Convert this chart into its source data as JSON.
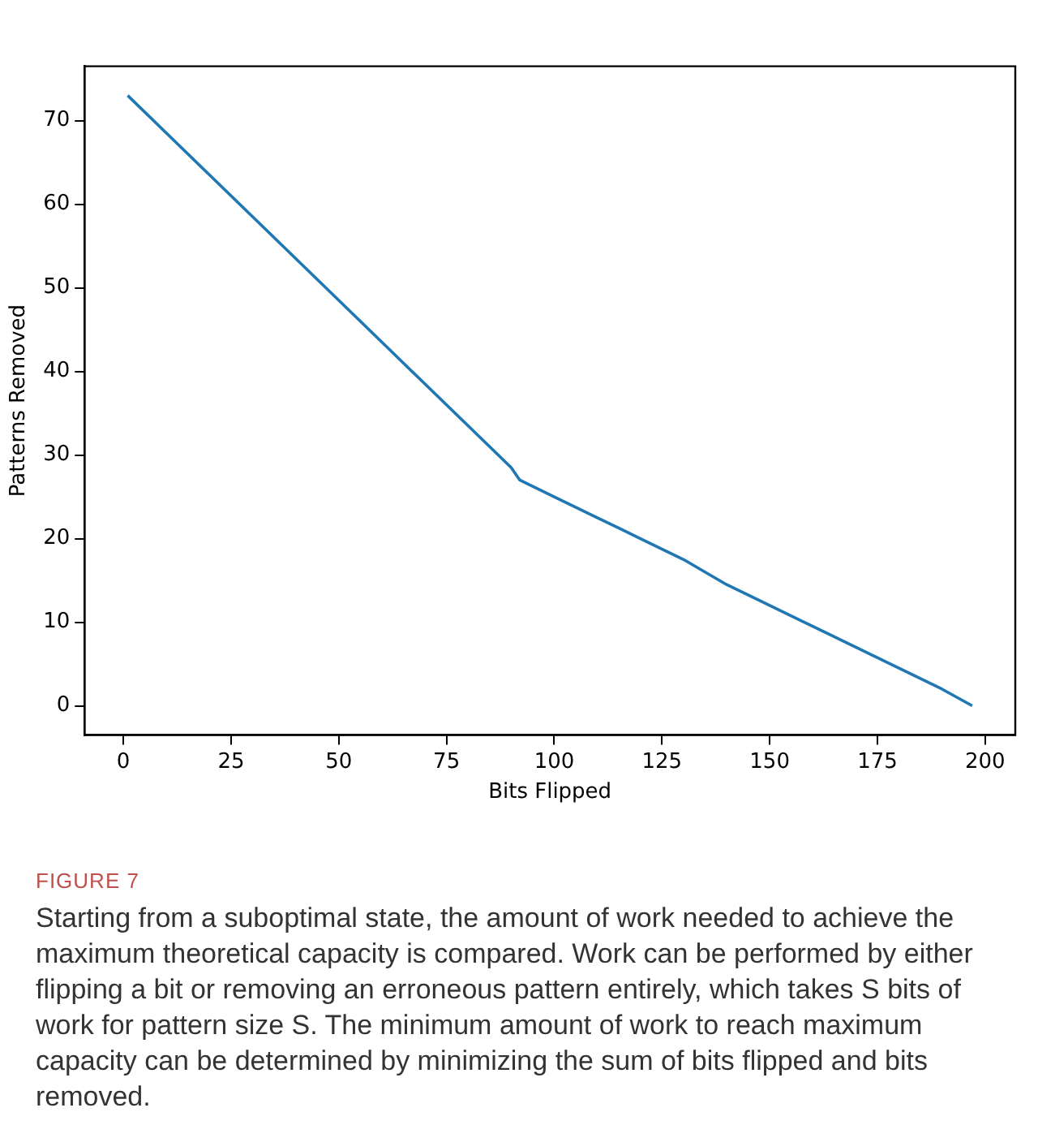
{
  "chart_data": {
    "type": "line",
    "xlabel": "Bits Flipped",
    "ylabel": "Patterns Removed",
    "x": [
      1,
      10,
      20,
      30,
      40,
      50,
      60,
      70,
      80,
      90,
      92,
      100,
      110,
      120,
      130,
      140,
      150,
      160,
      170,
      180,
      190,
      197
    ],
    "series": [
      {
        "color": "#1f77b4",
        "values": [
          73,
          68.5,
          63.5,
          58.5,
          53.5,
          48.5,
          43.5,
          38.5,
          33.5,
          28.5,
          27,
          25,
          22.5,
          20,
          17.5,
          14.5,
          12,
          9.5,
          7,
          4.5,
          2,
          0
        ]
      }
    ],
    "xlim": [
      -9,
      207
    ],
    "xticks": [
      0,
      25,
      50,
      75,
      100,
      125,
      150,
      175,
      200
    ],
    "ylim": [
      -3.5,
      76.5
    ],
    "yticks": [
      0,
      10,
      20,
      30,
      40,
      50,
      60,
      70
    ],
    "grid": false,
    "legend": false,
    "marker": "none",
    "line_style": "solid",
    "annotations": [
      "FIGURE 7",
      "Starting from a suboptimal state, the amount of work needed to achieve the maximum theoretical capacity is compared. Work can be performed by either flipping a bit or removing an erroneous pattern entirely, which takes S bits of work for pattern size S. The minimum amount of work to reach maximum capacity can be determined by minimizing the sum of bits flipped and bits removed."
    ]
  }
}
